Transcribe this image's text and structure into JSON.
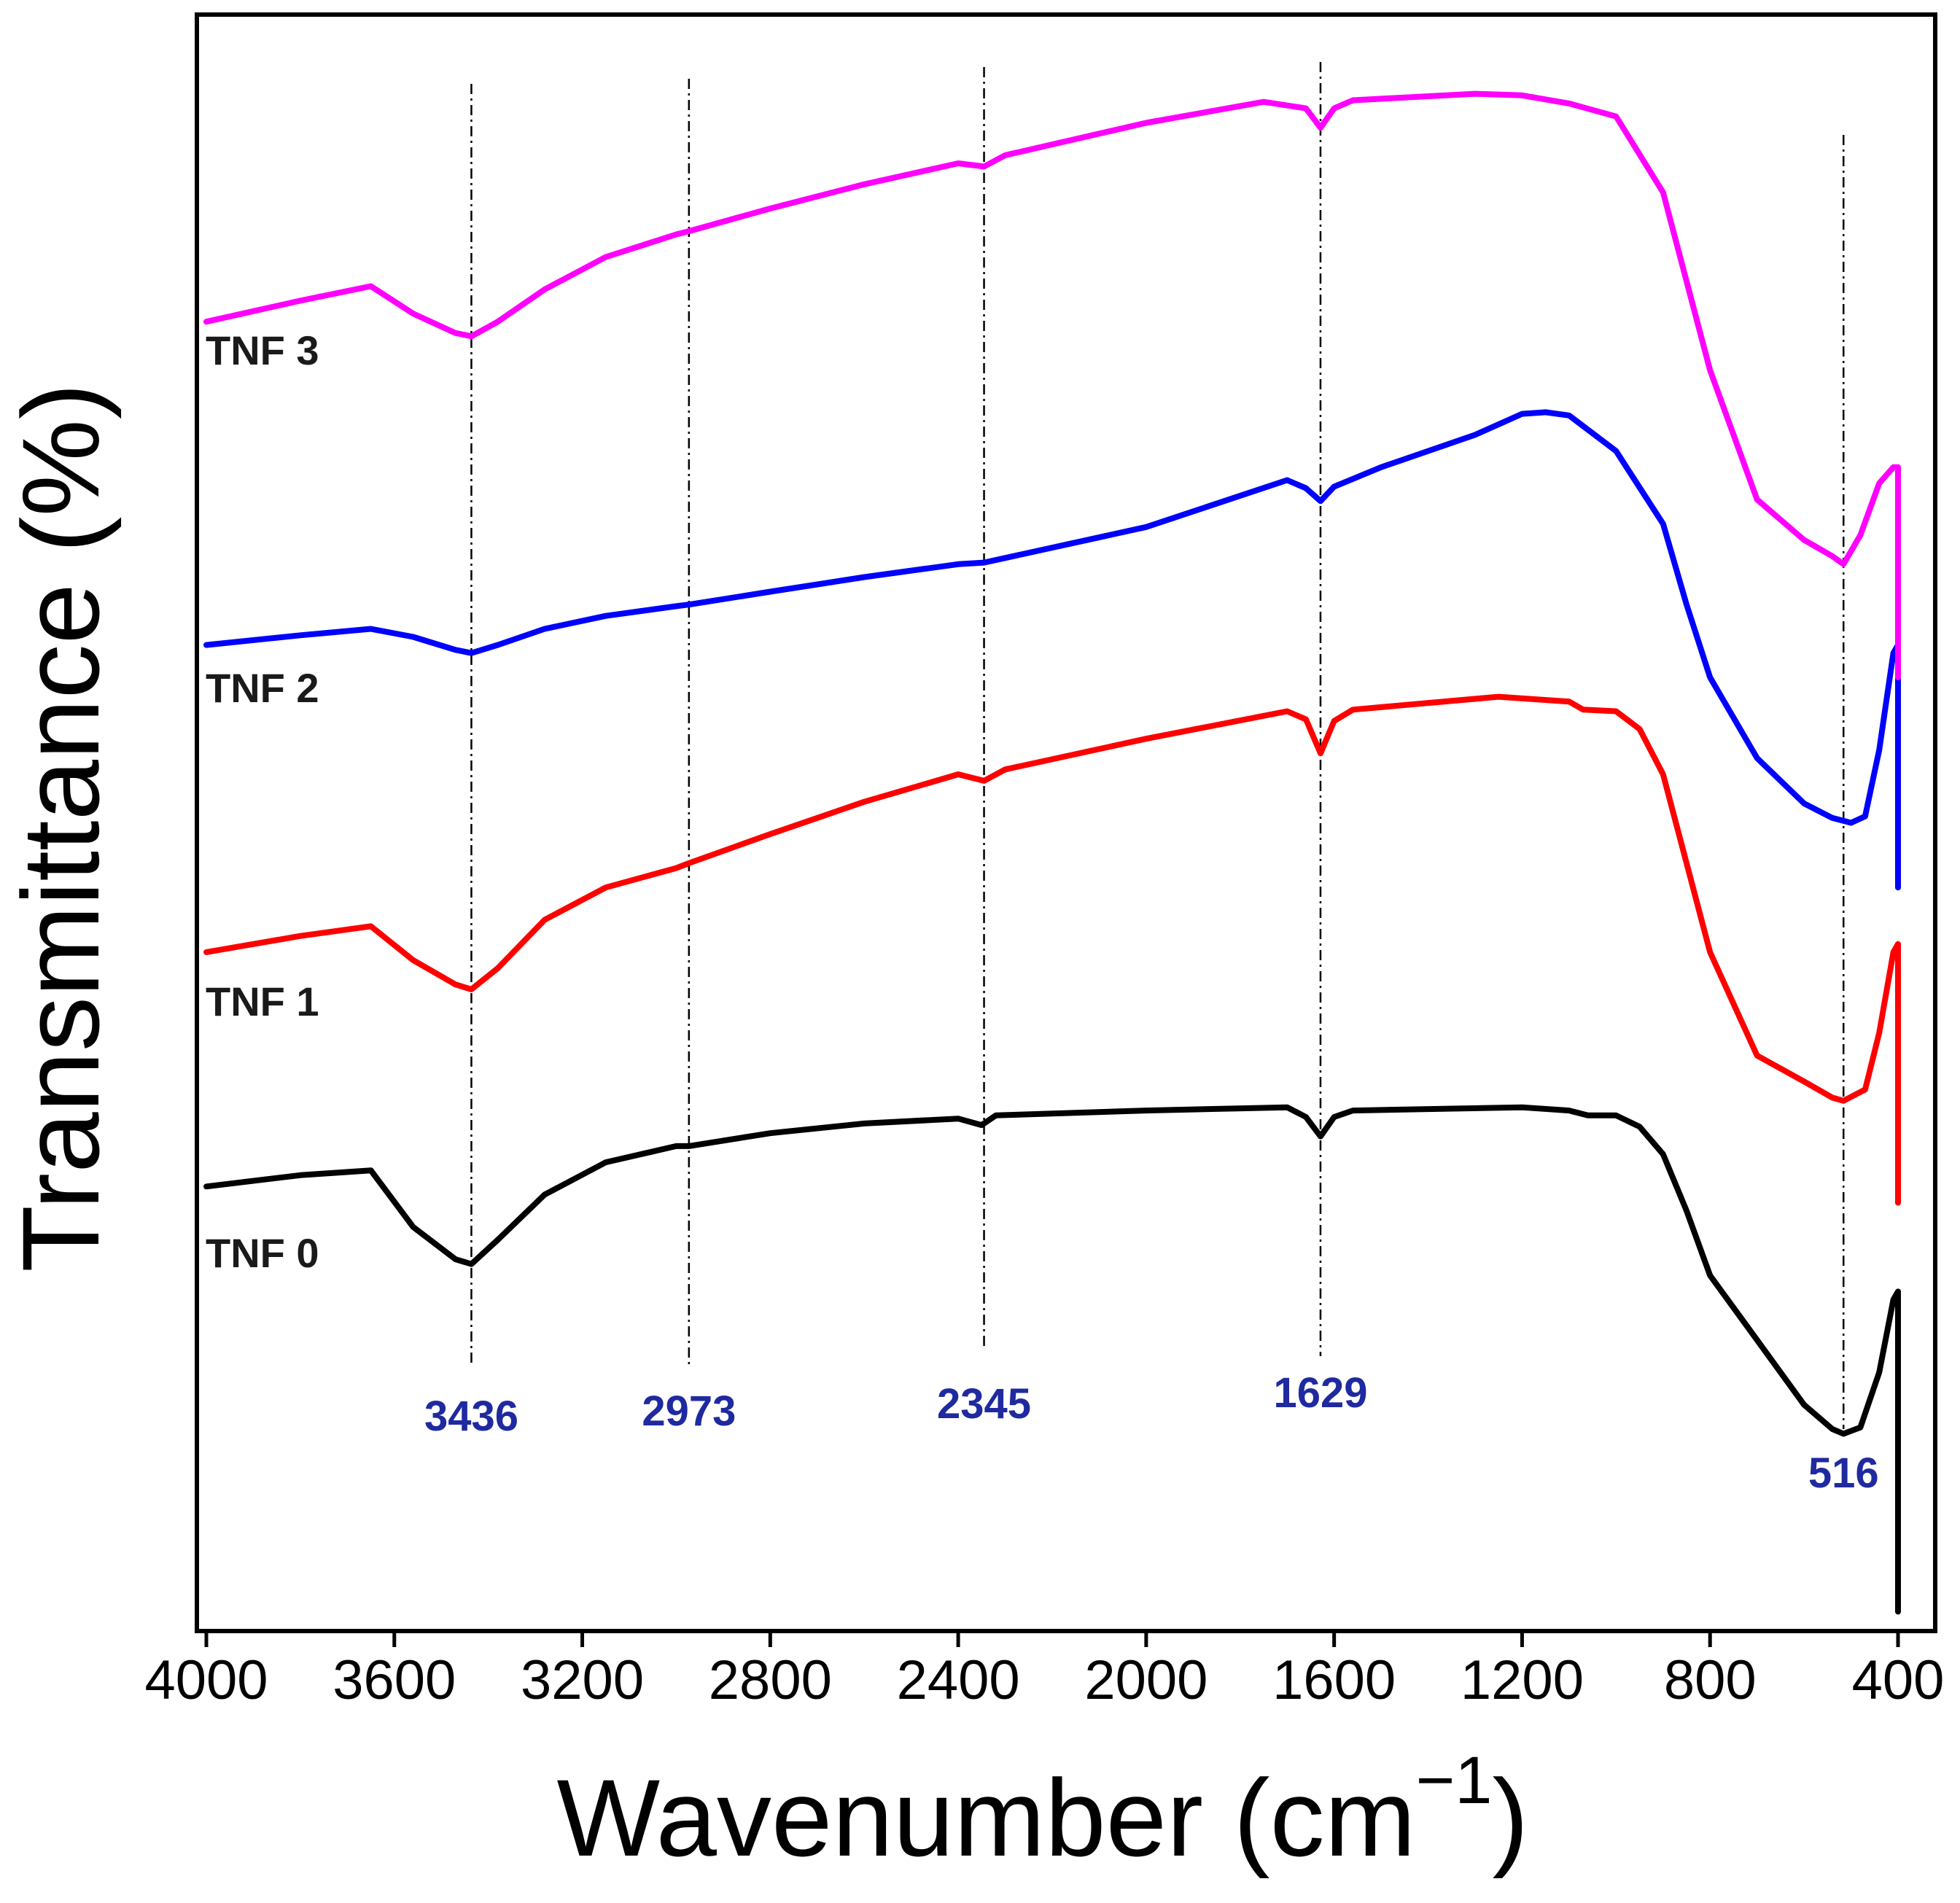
{
  "chart_data": {
    "type": "line",
    "title": "",
    "xlabel": "Wavenumber (cm",
    "xlabel_exponent": "−1",
    "xlabel_close": ")",
    "ylabel": "Transmittance (%)",
    "xlim": [
      4000,
      400
    ],
    "x_reversed": true,
    "ylim": [
      0,
      100
    ],
    "y_ticks_shown": false,
    "grid": false,
    "x_ticks": [
      "4000",
      "3600",
      "3200",
      "2800",
      "2400",
      "2000",
      "1600",
      "1200",
      "800",
      "400"
    ],
    "peak_markers": [
      {
        "x": 3436,
        "label": "3436"
      },
      {
        "x": 2973,
        "label": "2973"
      },
      {
        "x": 2345,
        "label": "2345"
      },
      {
        "x": 1629,
        "label": "1629"
      },
      {
        "x": 516,
        "label": "516"
      }
    ],
    "peak_color": "#1f2aa0",
    "series": [
      {
        "name": "TNF 0",
        "color": "#000000",
        "points": [
          [
            4000,
            27.5
          ],
          [
            3800,
            28.2
          ],
          [
            3650,
            28.5
          ],
          [
            3560,
            25.0
          ],
          [
            3470,
            23.0
          ],
          [
            3436,
            22.7
          ],
          [
            3380,
            24.2
          ],
          [
            3280,
            27.0
          ],
          [
            3150,
            29.0
          ],
          [
            3000,
            30.0
          ],
          [
            2973,
            30.0
          ],
          [
            2800,
            30.8
          ],
          [
            2600,
            31.4
          ],
          [
            2400,
            31.7
          ],
          [
            2350,
            31.3
          ],
          [
            2320,
            31.9
          ],
          [
            2000,
            32.2
          ],
          [
            1700,
            32.4
          ],
          [
            1660,
            31.8
          ],
          [
            1629,
            30.6
          ],
          [
            1600,
            31.8
          ],
          [
            1560,
            32.2
          ],
          [
            1200,
            32.4
          ],
          [
            1100,
            32.2
          ],
          [
            1060,
            31.9
          ],
          [
            1000,
            31.9
          ],
          [
            950,
            31.2
          ],
          [
            900,
            29.5
          ],
          [
            850,
            26.0
          ],
          [
            800,
            22.0
          ],
          [
            700,
            18.0
          ],
          [
            600,
            14.0
          ],
          [
            540,
            12.5
          ],
          [
            516,
            12.2
          ],
          [
            480,
            12.6
          ],
          [
            440,
            16.0
          ],
          [
            410,
            20.5
          ],
          [
            400,
            21.0
          ],
          [
            400,
            1.2
          ]
        ]
      },
      {
        "name": "TNF 1",
        "color": "#ff0000",
        "points": [
          [
            4000,
            42.0
          ],
          [
            3800,
            43.0
          ],
          [
            3650,
            43.6
          ],
          [
            3560,
            41.5
          ],
          [
            3470,
            40.0
          ],
          [
            3436,
            39.7
          ],
          [
            3380,
            41.0
          ],
          [
            3280,
            44.0
          ],
          [
            3150,
            46.0
          ],
          [
            3000,
            47.2
          ],
          [
            2973,
            47.5
          ],
          [
            2800,
            49.3
          ],
          [
            2600,
            51.3
          ],
          [
            2400,
            53.0
          ],
          [
            2345,
            52.6
          ],
          [
            2300,
            53.3
          ],
          [
            2000,
            55.2
          ],
          [
            1700,
            56.9
          ],
          [
            1660,
            56.4
          ],
          [
            1629,
            54.3
          ],
          [
            1600,
            56.3
          ],
          [
            1560,
            57.0
          ],
          [
            1250,
            57.8
          ],
          [
            1100,
            57.5
          ],
          [
            1070,
            57.0
          ],
          [
            1000,
            56.9
          ],
          [
            950,
            55.8
          ],
          [
            900,
            53.0
          ],
          [
            850,
            47.5
          ],
          [
            800,
            42.0
          ],
          [
            700,
            35.6
          ],
          [
            600,
            34.0
          ],
          [
            540,
            33.0
          ],
          [
            516,
            32.8
          ],
          [
            470,
            33.5
          ],
          [
            440,
            37.0
          ],
          [
            410,
            42.0
          ],
          [
            400,
            42.5
          ],
          [
            400,
            26.5
          ]
        ]
      },
      {
        "name": "TNF 2",
        "color": "#0000ff",
        "points": [
          [
            4000,
            61.0
          ],
          [
            3800,
            61.6
          ],
          [
            3650,
            62.0
          ],
          [
            3560,
            61.5
          ],
          [
            3470,
            60.7
          ],
          [
            3436,
            60.5
          ],
          [
            3380,
            61.0
          ],
          [
            3280,
            62.0
          ],
          [
            3150,
            62.8
          ],
          [
            3000,
            63.4
          ],
          [
            2973,
            63.5
          ],
          [
            2800,
            64.3
          ],
          [
            2600,
            65.2
          ],
          [
            2400,
            66.0
          ],
          [
            2345,
            66.1
          ],
          [
            2000,
            68.3
          ],
          [
            1700,
            71.2
          ],
          [
            1660,
            70.7
          ],
          [
            1629,
            69.9
          ],
          [
            1600,
            70.8
          ],
          [
            1500,
            72.0
          ],
          [
            1300,
            74.0
          ],
          [
            1200,
            75.3
          ],
          [
            1150,
            75.4
          ],
          [
            1100,
            75.2
          ],
          [
            1000,
            73.0
          ],
          [
            900,
            68.5
          ],
          [
            850,
            63.5
          ],
          [
            800,
            59.0
          ],
          [
            700,
            54.0
          ],
          [
            600,
            51.2
          ],
          [
            540,
            50.3
          ],
          [
            500,
            50.0
          ],
          [
            470,
            50.4
          ],
          [
            440,
            54.5
          ],
          [
            410,
            60.5
          ],
          [
            400,
            61.0
          ],
          [
            400,
            46.0
          ]
        ]
      },
      {
        "name": "TNF 3",
        "color": "#ff00ff",
        "points": [
          [
            4000,
            81.0
          ],
          [
            3800,
            82.3
          ],
          [
            3650,
            83.2
          ],
          [
            3560,
            81.5
          ],
          [
            3470,
            80.3
          ],
          [
            3436,
            80.1
          ],
          [
            3380,
            81.0
          ],
          [
            3280,
            83.0
          ],
          [
            3150,
            85.0
          ],
          [
            3000,
            86.4
          ],
          [
            2973,
            86.6
          ],
          [
            2800,
            88.0
          ],
          [
            2600,
            89.5
          ],
          [
            2400,
            90.8
          ],
          [
            2345,
            90.6
          ],
          [
            2300,
            91.3
          ],
          [
            2000,
            93.3
          ],
          [
            1750,
            94.6
          ],
          [
            1660,
            94.2
          ],
          [
            1629,
            93.0
          ],
          [
            1600,
            94.2
          ],
          [
            1560,
            94.7
          ],
          [
            1300,
            95.1
          ],
          [
            1200,
            95.0
          ],
          [
            1100,
            94.5
          ],
          [
            1000,
            93.7
          ],
          [
            900,
            89.0
          ],
          [
            850,
            83.5
          ],
          [
            800,
            78.0
          ],
          [
            700,
            70.0
          ],
          [
            600,
            67.5
          ],
          [
            540,
            66.5
          ],
          [
            516,
            66.0
          ],
          [
            480,
            67.8
          ],
          [
            440,
            71.0
          ],
          [
            410,
            72.0
          ],
          [
            400,
            72.0
          ],
          [
            400,
            59.0
          ]
        ]
      }
    ]
  }
}
